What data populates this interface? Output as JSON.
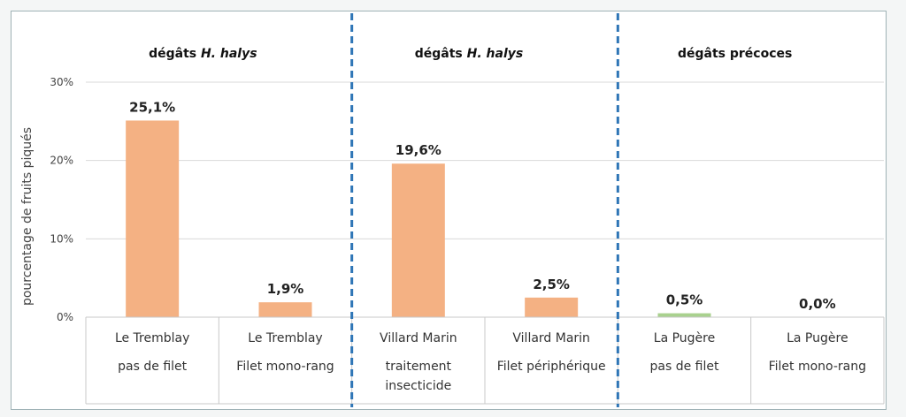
{
  "chart_data": {
    "type": "bar",
    "ylabel": "pourcentage de fruits piqués",
    "ylim": [
      0,
      30
    ],
    "yticks": [
      "0%",
      "10%",
      "20%",
      "30%"
    ],
    "grid": true,
    "sections": [
      {
        "title_prefix": "dégâts ",
        "title_italic": "H. halys",
        "categories": [
          0,
          1
        ]
      },
      {
        "title_prefix": "dégâts ",
        "title_italic": "H. halys",
        "categories": [
          2,
          3
        ]
      },
      {
        "title_prefix": "dégâts précoces",
        "title_italic": "",
        "categories": [
          4,
          5
        ]
      }
    ],
    "categories": [
      {
        "lines": [
          "Le Tremblay",
          "pas de filet"
        ]
      },
      {
        "lines": [
          "Le Tremblay",
          "Filet mono-rang"
        ]
      },
      {
        "lines": [
          "Villard Marin",
          "traitement",
          "insecticide"
        ]
      },
      {
        "lines": [
          "Villard Marin",
          "Filet périphérique"
        ]
      },
      {
        "lines": [
          "La Pugère",
          "pas de filet"
        ]
      },
      {
        "lines": [
          "La Pugère",
          "Filet mono-rang"
        ]
      }
    ],
    "values": [
      25.1,
      1.9,
      19.6,
      2.5,
      0.5,
      0.0
    ],
    "value_labels": [
      "25,1%",
      "1,9%",
      "19,6%",
      "2,5%",
      "0,5%",
      "0,0%"
    ],
    "bar_colors": [
      "#f4b183",
      "#f4b183",
      "#f4b183",
      "#f4b183",
      "#a9d18e",
      "#a9d18e"
    ],
    "divider_color": "#2e75b6"
  }
}
